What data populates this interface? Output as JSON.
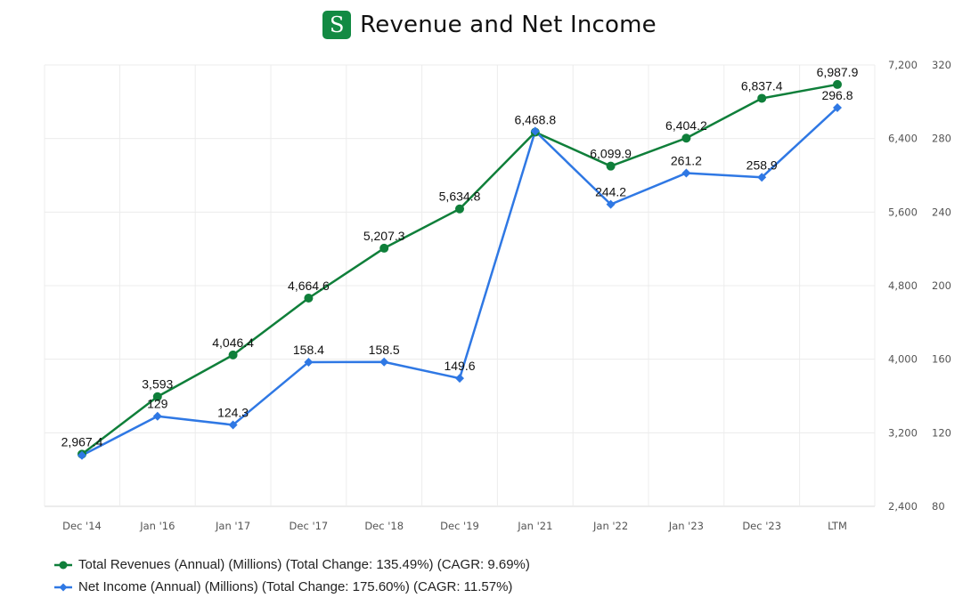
{
  "header": {
    "logo_letter": "S",
    "title": "Revenue and Net Income"
  },
  "colors": {
    "revenue": "#0f7f3a",
    "net_income": "#2f78e4",
    "grid": "#ececec",
    "brand": "#138a43"
  },
  "chart_data": {
    "type": "line",
    "title": "Revenue and Net Income",
    "categories": [
      "Dec '14",
      "Jan '16",
      "Jan '17",
      "Dec '17",
      "Dec '18",
      "Dec '19",
      "Jan '21",
      "Jan '22",
      "Jan '23",
      "Dec '23",
      "LTM"
    ],
    "y_axes": [
      {
        "id": "revenue",
        "range": [
          2400,
          7200
        ],
        "ticks": [
          "2,400",
          "3,200",
          "4,000",
          "4,800",
          "5,600",
          "6,400",
          "7,200"
        ],
        "tick_values": [
          2400,
          3200,
          4000,
          4800,
          5600,
          6400,
          7200
        ]
      },
      {
        "id": "net_income",
        "range": [
          80,
          320
        ],
        "ticks": [
          "80",
          "120",
          "160",
          "200",
          "240",
          "280",
          "320"
        ],
        "tick_values": [
          80,
          120,
          160,
          200,
          240,
          280,
          320
        ]
      }
    ],
    "grid": true,
    "legend_position": "bottom-left",
    "series": [
      {
        "name": "Total Revenues (Annual) (Millions) (Total Change: 135.49%) (CAGR: 9.69%)",
        "axis": "revenue",
        "marker": "circle",
        "values": [
          2967.4,
          3593,
          4046.4,
          4664.6,
          5207.3,
          5634.8,
          6468.8,
          6099.9,
          6404.2,
          6837.4,
          6987.9
        ],
        "labels": [
          "2,967.4",
          "3,593",
          "4,046.4",
          "4,664.6",
          "5,207.3",
          "5,634.8",
          "6,468.8",
          "6,099.9",
          "6,404.2",
          "6,837.4",
          "6,987.9"
        ]
      },
      {
        "name": "Net Income (Annual) (Millions) (Total Change: 175.60%) (CAGR: 11.57%)",
        "axis": "net_income",
        "marker": "diamond",
        "values": [
          107.7,
          129,
          124.3,
          158.4,
          158.5,
          149.6,
          284,
          244.2,
          261.2,
          258.9,
          296.8
        ],
        "labels": [
          null,
          "129",
          "124.3",
          "158.4",
          "158.5",
          "149.6",
          null,
          "244.2",
          "261.2",
          "258.9",
          "296.8"
        ]
      }
    ]
  }
}
